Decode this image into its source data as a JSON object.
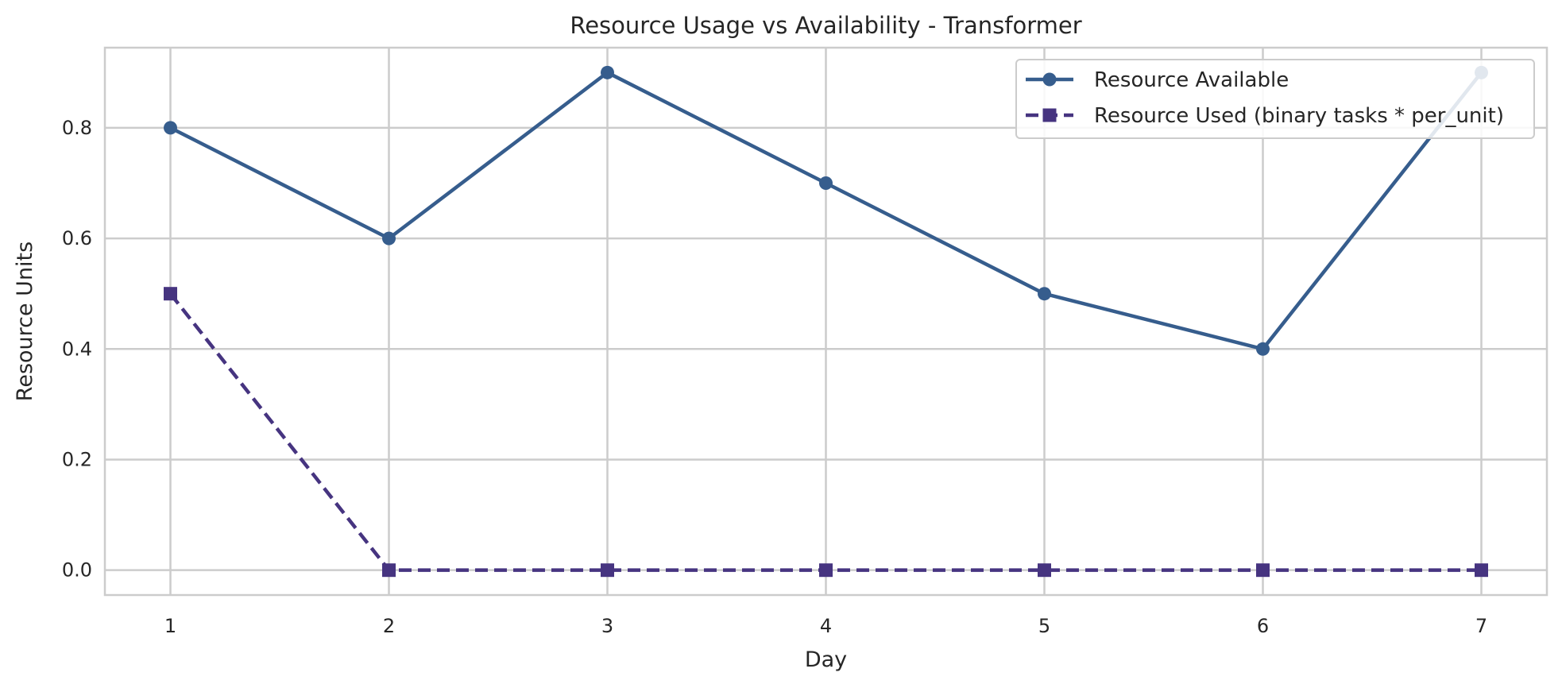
{
  "chart_data": {
    "type": "line",
    "title": "Resource Usage vs Availability - Transformer",
    "xlabel": "Day",
    "ylabel": "Resource Units",
    "x": [
      1,
      2,
      3,
      4,
      5,
      6,
      7
    ],
    "xlim": [
      0.7,
      7.3
    ],
    "ylim": [
      -0.045,
      0.945
    ],
    "xticks": [
      "1",
      "2",
      "3",
      "4",
      "5",
      "6",
      "7"
    ],
    "yticks": [
      "0.0",
      "0.2",
      "0.4",
      "0.6",
      "0.8"
    ],
    "grid": true,
    "legend_position": "top-right",
    "series": [
      {
        "name": "Resource Available",
        "values": [
          0.8,
          0.6,
          0.9,
          0.7,
          0.5,
          0.4,
          0.9
        ],
        "color": "#365d8d",
        "marker": "circle",
        "line_style": "solid"
      },
      {
        "name": "Resource Used (binary tasks * per_unit)",
        "values": [
          0.5,
          0.0,
          0.0,
          0.0,
          0.0,
          0.0,
          0.0
        ],
        "color": "#463480",
        "marker": "square",
        "line_style": "dashed"
      }
    ]
  }
}
